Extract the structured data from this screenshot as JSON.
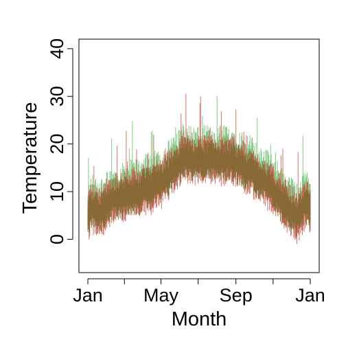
{
  "chart_data": {
    "type": "area",
    "title": "",
    "xlabel": "Month",
    "ylabel": "Temperature",
    "xlim": [
      "Jan",
      "Jan"
    ],
    "ylim": [
      -7,
      42
    ],
    "xticks": [
      {
        "label": "Jan",
        "day": 0
      },
      {
        "label": "",
        "day": 60
      },
      {
        "label": "May",
        "day": 120
      },
      {
        "label": "",
        "day": 181
      },
      {
        "label": "Sep",
        "day": 243
      },
      {
        "label": "",
        "day": 304
      },
      {
        "label": "Jan",
        "day": 365
      }
    ],
    "yticks": [
      0,
      10,
      20,
      30,
      40
    ],
    "grid": false,
    "legend": "none",
    "series": [
      {
        "color": "#d9544d",
        "values_by_week": [
          5,
          7,
          6,
          6,
          7,
          8,
          9,
          9,
          9,
          10,
          10,
          10,
          10,
          11,
          11,
          11,
          12,
          12,
          13,
          14,
          15,
          16,
          17,
          18,
          17,
          17,
          17,
          17,
          17,
          17,
          17,
          17,
          17,
          17,
          17,
          16,
          16,
          15,
          15,
          14,
          13,
          13,
          12,
          11,
          10,
          9,
          8,
          7,
          6,
          5,
          6,
          8,
          7
        ]
      },
      {
        "color": "#5cb85c",
        "values_by_week": [
          7,
          9,
          8,
          8,
          9,
          10,
          10,
          11,
          11,
          12,
          12,
          12,
          12,
          13,
          13,
          13,
          14,
          14,
          15,
          16,
          17,
          18,
          19,
          20,
          19,
          19,
          19,
          19,
          19,
          19,
          19,
          19,
          19,
          19,
          19,
          18,
          18,
          17,
          17,
          16,
          15,
          15,
          14,
          13,
          12,
          11,
          10,
          9,
          8,
          7,
          8,
          10,
          9
        ]
      }
    ]
  }
}
